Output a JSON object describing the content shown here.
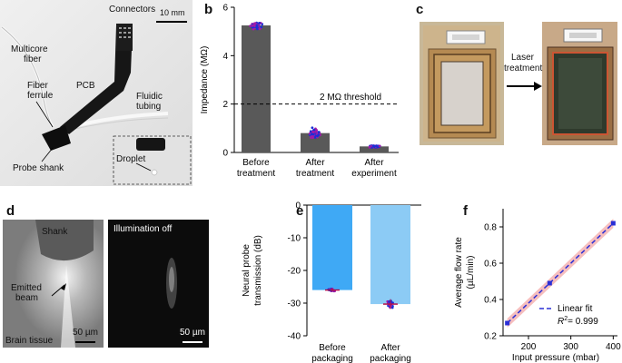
{
  "panel_a": {
    "label": "a",
    "annotations": {
      "connectors": "Connectors",
      "scale": "10 mm",
      "multicore": [
        "Multicore",
        "fiber"
      ],
      "pcb": "PCB",
      "ferrule": [
        "Fiber",
        "ferrule"
      ],
      "fluidic": [
        "Fluidic",
        "tubing"
      ],
      "probe_shank": "Probe shank",
      "droplet": "Droplet"
    }
  },
  "panel_b": {
    "label": "b",
    "threshold_label": "2 MΩ threshold"
  },
  "panel_c": {
    "label": "c",
    "arrow_label": [
      "Laser",
      "treatment"
    ]
  },
  "panel_d": {
    "label": "d",
    "shank": "Shank",
    "illum_off": "Illumination off",
    "emitted": [
      "Emitted",
      "beam"
    ],
    "scale_left": "50 µm",
    "scale_right": "50 µm",
    "brain": "Brain tissue"
  },
  "panel_e": {
    "label": "e"
  },
  "panel_f": {
    "label": "f"
  },
  "chart_data": [
    {
      "id": "b",
      "type": "bar",
      "ylabel": "Impedance (MΩ)",
      "categories": [
        [
          "Before",
          "treatment"
        ],
        [
          "After",
          "treatment"
        ],
        [
          "After",
          "experiment"
        ]
      ],
      "values": [
        5.25,
        0.8,
        0.25
      ],
      "ylim": [
        0,
        6
      ],
      "yticks": [
        0,
        2,
        4,
        6
      ],
      "threshold": 2,
      "bar_color": "#595959",
      "dot_colors": [
        "#1a2fd6",
        "#a01aa8"
      ]
    },
    {
      "id": "e",
      "type": "bar",
      "ylabel": [
        "Neural probe",
        "transmission (dB)"
      ],
      "categories": [
        [
          "Before",
          "packaging"
        ],
        [
          "After",
          "packaging"
        ]
      ],
      "values": [
        -26,
        -30.3
      ],
      "ylim": [
        -40,
        0
      ],
      "yticks": [
        0,
        -10,
        -20,
        -30,
        -40
      ],
      "bar_colors": [
        "#3fa9f5",
        "#8ccbf5"
      ],
      "dot_colors": [
        "#1a2fd6",
        "#a01aa8"
      ]
    },
    {
      "id": "f",
      "type": "scatter",
      "xlabel": "Input pressure (mbar)",
      "ylabel": [
        "Average flow rate",
        "(µL/min)"
      ],
      "x": [
        150,
        250,
        400
      ],
      "y": [
        0.27,
        0.49,
        0.82
      ],
      "xlim": [
        140,
        410
      ],
      "ylim": [
        0.2,
        0.9
      ],
      "xticks": [
        200,
        300,
        400
      ],
      "yticks": [
        0.2,
        0.4,
        0.6,
        0.8
      ],
      "legend": "Linear fit",
      "r2": "= 0.999",
      "r2_symbol": "R",
      "r2_exp": "2",
      "point_color": "#2a2fd6",
      "fit_band_color": "#f4b3b3"
    }
  ]
}
